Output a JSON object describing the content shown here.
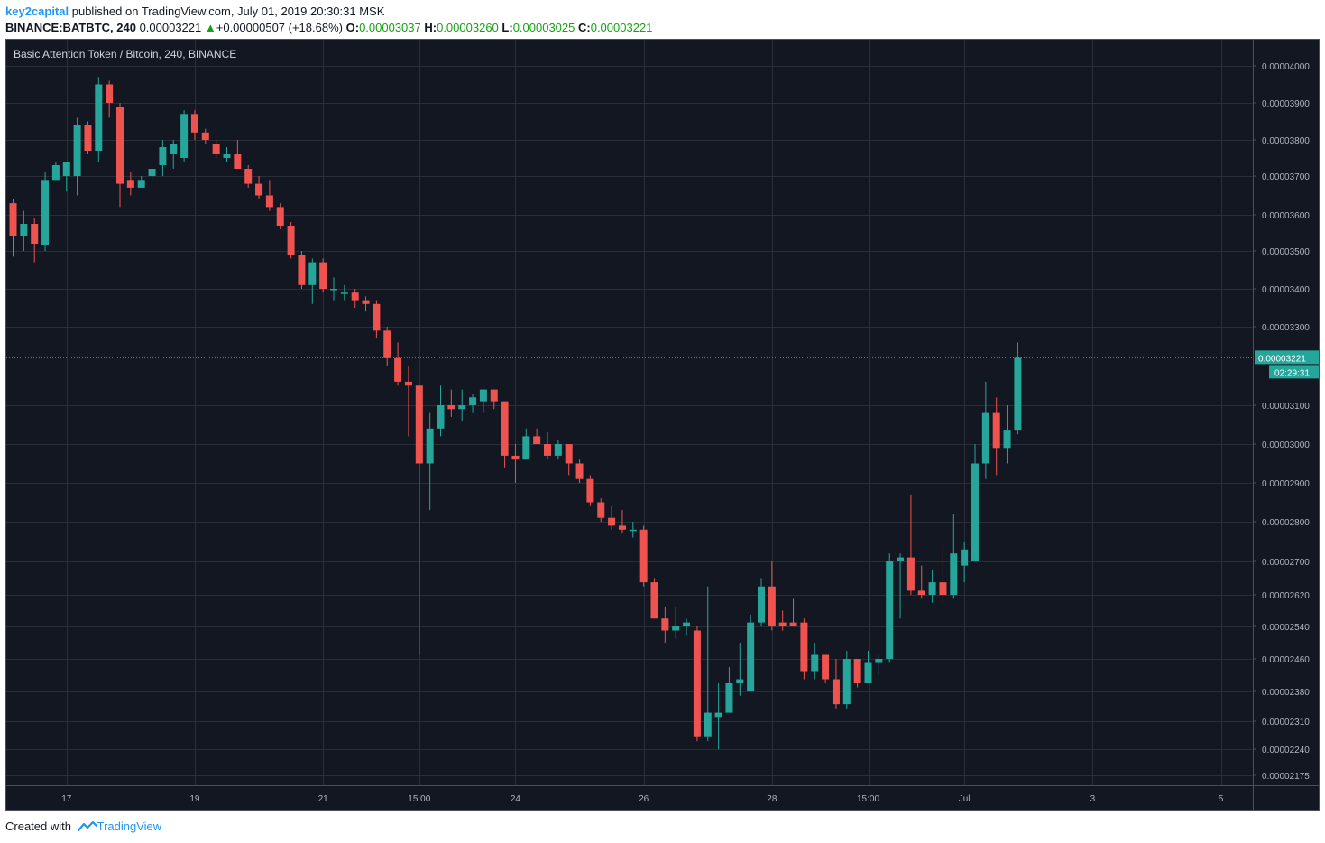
{
  "header": {
    "author": "key2capital",
    "published": "published on TradingView.com, July 01, 2019 20:30:31 MSK",
    "symbol": "BINANCE:BATBTC, 240",
    "last": "0.00003221",
    "change": "+0.00000507 (+18.68%)",
    "o_label": "O:",
    "o_value": "0.00003037",
    "h_label": "H:",
    "h_value": "0.00003260",
    "l_label": "L:",
    "l_value": "0.00003025",
    "c_label": "C:",
    "c_value": "0.00003221"
  },
  "footer": {
    "created_with": "Created with",
    "brand": "TradingView"
  },
  "colors": {
    "background": "#131722",
    "grid": "#2a2e39",
    "up": "#26a69a",
    "down": "#ef5350",
    "text": "#b2b5be",
    "price_tag": "#26a69a"
  },
  "chart_data": {
    "type": "candlestick",
    "title": "Basic Attention Token / Bitcoin, 240, BINANCE",
    "x_ticks": [
      {
        "label": "17",
        "index": 5
      },
      {
        "label": "19",
        "index": 17
      },
      {
        "label": "21",
        "index": 29
      },
      {
        "label": "15:00",
        "index": 38
      },
      {
        "label": "24",
        "index": 47
      },
      {
        "label": "26",
        "index": 59
      },
      {
        "label": "28",
        "index": 71
      },
      {
        "label": "15:00",
        "index": 80
      },
      {
        "label": "Jul",
        "index": 89
      },
      {
        "label": "3",
        "index": 101
      },
      {
        "label": "5",
        "index": 113
      }
    ],
    "y_ticks": [
      "0.00004000",
      "0.00003900",
      "0.00003800",
      "0.00003700",
      "0.00003600",
      "0.00003500",
      "0.00003400",
      "0.00003300",
      "0.00003100",
      "0.00003000",
      "0.00002900",
      "0.00002800",
      "0.00002700",
      "0.00002620",
      "0.00002540",
      "0.00002460",
      "0.00002380",
      "0.00002310",
      "0.00002240",
      "0.00002175"
    ],
    "last_price": "0.00003221",
    "countdown": "02:29:31",
    "candles": [
      {
        "o": 3.63e-05,
        "h": 3.64e-05,
        "l": 3.485e-05,
        "c": 3.54e-05
      },
      {
        "o": 3.54e-05,
        "h": 3.61e-05,
        "l": 3.5e-05,
        "c": 3.575e-05
      },
      {
        "o": 3.575e-05,
        "h": 3.59e-05,
        "l": 3.47e-05,
        "c": 3.52e-05
      },
      {
        "o": 3.515e-05,
        "h": 3.71e-05,
        "l": 3.5e-05,
        "c": 3.69e-05
      },
      {
        "o": 3.69e-05,
        "h": 3.74e-05,
        "l": 3.69e-05,
        "c": 3.73e-05
      },
      {
        "o": 3.7e-05,
        "h": 3.74e-05,
        "l": 3.66e-05,
        "c": 3.74e-05
      },
      {
        "o": 3.7e-05,
        "h": 3.86e-05,
        "l": 3.65e-05,
        "c": 3.84e-05
      },
      {
        "o": 3.84e-05,
        "h": 3.85e-05,
        "l": 3.76e-05,
        "c": 3.77e-05
      },
      {
        "o": 3.77e-05,
        "h": 3.97e-05,
        "l": 3.74e-05,
        "c": 3.95e-05
      },
      {
        "o": 3.95e-05,
        "h": 3.96e-05,
        "l": 3.86e-05,
        "c": 3.9e-05
      },
      {
        "o": 3.89e-05,
        "h": 3.9e-05,
        "l": 3.62e-05,
        "c": 3.68e-05
      },
      {
        "o": 3.69e-05,
        "h": 3.71e-05,
        "l": 3.65e-05,
        "c": 3.67e-05
      },
      {
        "o": 3.67e-05,
        "h": 3.7e-05,
        "l": 3.67e-05,
        "c": 3.69e-05
      },
      {
        "o": 3.7e-05,
        "h": 3.72e-05,
        "l": 3.69e-05,
        "c": 3.72e-05
      },
      {
        "o": 3.73e-05,
        "h": 3.8e-05,
        "l": 3.7e-05,
        "c": 3.78e-05
      },
      {
        "o": 3.76e-05,
        "h": 3.8e-05,
        "l": 3.72e-05,
        "c": 3.79e-05
      },
      {
        "o": 3.75e-05,
        "h": 3.88e-05,
        "l": 3.74e-05,
        "c": 3.87e-05
      },
      {
        "o": 3.87e-05,
        "h": 3.88e-05,
        "l": 3.8e-05,
        "c": 3.82e-05
      },
      {
        "o": 3.82e-05,
        "h": 3.83e-05,
        "l": 3.79e-05,
        "c": 3.8e-05
      },
      {
        "o": 3.79e-05,
        "h": 3.8e-05,
        "l": 3.75e-05,
        "c": 3.76e-05
      },
      {
        "o": 3.75e-05,
        "h": 3.78e-05,
        "l": 3.74e-05,
        "c": 3.76e-05
      },
      {
        "o": 3.76e-05,
        "h": 3.8e-05,
        "l": 3.72e-05,
        "c": 3.72e-05
      },
      {
        "o": 3.72e-05,
        "h": 3.73e-05,
        "l": 3.67e-05,
        "c": 3.68e-05
      },
      {
        "o": 3.68e-05,
        "h": 3.7e-05,
        "l": 3.64e-05,
        "c": 3.65e-05
      },
      {
        "o": 3.65e-05,
        "h": 3.69e-05,
        "l": 3.61e-05,
        "c": 3.62e-05
      },
      {
        "o": 3.62e-05,
        "h": 3.63e-05,
        "l": 3.56e-05,
        "c": 3.57e-05
      },
      {
        "o": 3.57e-05,
        "h": 3.58e-05,
        "l": 3.48e-05,
        "c": 3.49e-05
      },
      {
        "o": 3.49e-05,
        "h": 3.5e-05,
        "l": 3.4e-05,
        "c": 3.41e-05
      },
      {
        "o": 3.41e-05,
        "h": 3.48e-05,
        "l": 3.36e-05,
        "c": 3.47e-05
      },
      {
        "o": 3.47e-05,
        "h": 3.48e-05,
        "l": 3.39e-05,
        "c": 3.4e-05
      },
      {
        "o": 3.4e-05,
        "h": 3.43e-05,
        "l": 3.37e-05,
        "c": 3.4e-05
      },
      {
        "o": 3.39e-05,
        "h": 3.41e-05,
        "l": 3.37e-05,
        "c": 3.39e-05
      },
      {
        "o": 3.39e-05,
        "h": 3.4e-05,
        "l": 3.35e-05,
        "c": 3.37e-05
      },
      {
        "o": 3.37e-05,
        "h": 3.38e-05,
        "l": 3.34e-05,
        "c": 3.36e-05
      },
      {
        "o": 3.36e-05,
        "h": 3.37e-05,
        "l": 3.27e-05,
        "c": 3.29e-05
      },
      {
        "o": 3.29e-05,
        "h": 3.3e-05,
        "l": 3.2e-05,
        "c": 3.22e-05
      },
      {
        "o": 3.22e-05,
        "h": 3.26e-05,
        "l": 3.15e-05,
        "c": 3.16e-05
      },
      {
        "o": 3.16e-05,
        "h": 3.2e-05,
        "l": 3.02e-05,
        "c": 3.15e-05
      },
      {
        "o": 3.15e-05,
        "h": 3.15e-05,
        "l": 2.47e-05,
        "c": 2.95e-05
      },
      {
        "o": 2.95e-05,
        "h": 3.08e-05,
        "l": 2.83e-05,
        "c": 3.04e-05
      },
      {
        "o": 3.04e-05,
        "h": 3.15e-05,
        "l": 3.02e-05,
        "c": 3.1e-05
      },
      {
        "o": 3.1e-05,
        "h": 3.14e-05,
        "l": 3.07e-05,
        "c": 3.09e-05
      },
      {
        "o": 3.09e-05,
        "h": 3.14e-05,
        "l": 3.06e-05,
        "c": 3.1e-05
      },
      {
        "o": 3.1e-05,
        "h": 3.13e-05,
        "l": 3.08e-05,
        "c": 3.12e-05
      },
      {
        "o": 3.11e-05,
        "h": 3.14e-05,
        "l": 3.08e-05,
        "c": 3.14e-05
      },
      {
        "o": 3.14e-05,
        "h": 3.14e-05,
        "l": 3.09e-05,
        "c": 3.11e-05
      },
      {
        "o": 3.11e-05,
        "h": 3.11e-05,
        "l": 2.94e-05,
        "c": 2.97e-05
      },
      {
        "o": 2.97e-05,
        "h": 3e-05,
        "l": 2.9e-05,
        "c": 2.96e-05
      },
      {
        "o": 2.96e-05,
        "h": 3.04e-05,
        "l": 2.96e-05,
        "c": 3.02e-05
      },
      {
        "o": 3.02e-05,
        "h": 3.04e-05,
        "l": 3e-05,
        "c": 3e-05
      },
      {
        "o": 3e-05,
        "h": 3.03e-05,
        "l": 2.96e-05,
        "c": 2.97e-05
      },
      {
        "o": 2.97e-05,
        "h": 3.01e-05,
        "l": 2.96e-05,
        "c": 3e-05
      },
      {
        "o": 3e-05,
        "h": 3e-05,
        "l": 2.92e-05,
        "c": 2.95e-05
      },
      {
        "o": 2.95e-05,
        "h": 2.96e-05,
        "l": 2.9e-05,
        "c": 2.91e-05
      },
      {
        "o": 2.91e-05,
        "h": 2.92e-05,
        "l": 2.84e-05,
        "c": 2.85e-05
      },
      {
        "o": 2.85e-05,
        "h": 2.86e-05,
        "l": 2.8e-05,
        "c": 2.81e-05
      },
      {
        "o": 2.81e-05,
        "h": 2.84e-05,
        "l": 2.78e-05,
        "c": 2.79e-05
      },
      {
        "o": 2.79e-05,
        "h": 2.83e-05,
        "l": 2.77e-05,
        "c": 2.78e-05
      },
      {
        "o": 2.78e-05,
        "h": 2.8e-05,
        "l": 2.76e-05,
        "c": 2.78e-05
      },
      {
        "o": 2.78e-05,
        "h": 2.79e-05,
        "l": 2.64e-05,
        "c": 2.65e-05
      },
      {
        "o": 2.65e-05,
        "h": 2.66e-05,
        "l": 2.56e-05,
        "c": 2.56e-05
      },
      {
        "o": 2.56e-05,
        "h": 2.59e-05,
        "l": 2.5e-05,
        "c": 2.53e-05
      },
      {
        "o": 2.53e-05,
        "h": 2.59e-05,
        "l": 2.51e-05,
        "c": 2.54e-05
      },
      {
        "o": 2.54e-05,
        "h": 2.56e-05,
        "l": 2.52e-05,
        "c": 2.55e-05
      },
      {
        "o": 2.53e-05,
        "h": 2.54e-05,
        "l": 2.26e-05,
        "c": 2.27e-05
      },
      {
        "o": 2.27e-05,
        "h": 2.64e-05,
        "l": 2.26e-05,
        "c": 2.33e-05
      },
      {
        "o": 2.32e-05,
        "h": 2.4e-05,
        "l": 2.24e-05,
        "c": 2.33e-05
      },
      {
        "o": 2.33e-05,
        "h": 2.44e-05,
        "l": 2.33e-05,
        "c": 2.4e-05
      },
      {
        "o": 2.4e-05,
        "h": 2.5e-05,
        "l": 2.37e-05,
        "c": 2.41e-05
      },
      {
        "o": 2.38e-05,
        "h": 2.57e-05,
        "l": 2.38e-05,
        "c": 2.55e-05
      },
      {
        "o": 2.55e-05,
        "h": 2.66e-05,
        "l": 2.54e-05,
        "c": 2.64e-05
      },
      {
        "o": 2.64e-05,
        "h": 2.7e-05,
        "l": 2.53e-05,
        "c": 2.54e-05
      },
      {
        "o": 2.55e-05,
        "h": 2.58e-05,
        "l": 2.53e-05,
        "c": 2.54e-05
      },
      {
        "o": 2.55e-05,
        "h": 2.61e-05,
        "l": 2.54e-05,
        "c": 2.54e-05
      },
      {
        "o": 2.55e-05,
        "h": 2.56e-05,
        "l": 2.41e-05,
        "c": 2.43e-05
      },
      {
        "o": 2.43e-05,
        "h": 2.5e-05,
        "l": 2.41e-05,
        "c": 2.47e-05
      },
      {
        "o": 2.47e-05,
        "h": 2.47e-05,
        "l": 2.4e-05,
        "c": 2.41e-05
      },
      {
        "o": 2.41e-05,
        "h": 2.46e-05,
        "l": 2.34e-05,
        "c": 2.35e-05
      },
      {
        "o": 2.35e-05,
        "h": 2.48e-05,
        "l": 2.34e-05,
        "c": 2.46e-05
      },
      {
        "o": 2.46e-05,
        "h": 2.46e-05,
        "l": 2.39e-05,
        "c": 2.4e-05
      },
      {
        "o": 2.4e-05,
        "h": 2.48e-05,
        "l": 2.4e-05,
        "c": 2.45e-05
      },
      {
        "o": 2.45e-05,
        "h": 2.47e-05,
        "l": 2.42e-05,
        "c": 2.46e-05
      },
      {
        "o": 2.46e-05,
        "h": 2.72e-05,
        "l": 2.45e-05,
        "c": 2.7e-05
      },
      {
        "o": 2.7e-05,
        "h": 2.72e-05,
        "l": 2.56e-05,
        "c": 2.71e-05
      },
      {
        "o": 2.71e-05,
        "h": 2.87e-05,
        "l": 2.62e-05,
        "c": 2.63e-05
      },
      {
        "o": 2.63e-05,
        "h": 2.69e-05,
        "l": 2.61e-05,
        "c": 2.62e-05
      },
      {
        "o": 2.62e-05,
        "h": 2.68e-05,
        "l": 2.6e-05,
        "c": 2.65e-05
      },
      {
        "o": 2.65e-05,
        "h": 2.74e-05,
        "l": 2.6e-05,
        "c": 2.62e-05
      },
      {
        "o": 2.62e-05,
        "h": 2.82e-05,
        "l": 2.61e-05,
        "c": 2.72e-05
      },
      {
        "o": 2.69e-05,
        "h": 2.75e-05,
        "l": 2.65e-05,
        "c": 2.73e-05
      },
      {
        "o": 2.7e-05,
        "h": 3e-05,
        "l": 2.7e-05,
        "c": 2.95e-05
      },
      {
        "o": 2.95e-05,
        "h": 3.16e-05,
        "l": 2.91e-05,
        "c": 3.08e-05
      },
      {
        "o": 3.08e-05,
        "h": 3.12e-05,
        "l": 2.92e-05,
        "c": 2.99e-05
      },
      {
        "o": 2.99e-05,
        "h": 3.1e-05,
        "l": 2.95e-05,
        "c": 3.037e-05
      },
      {
        "o": 3.037e-05,
        "h": 3.26e-05,
        "l": 3.025e-05,
        "c": 3.221e-05
      }
    ]
  }
}
